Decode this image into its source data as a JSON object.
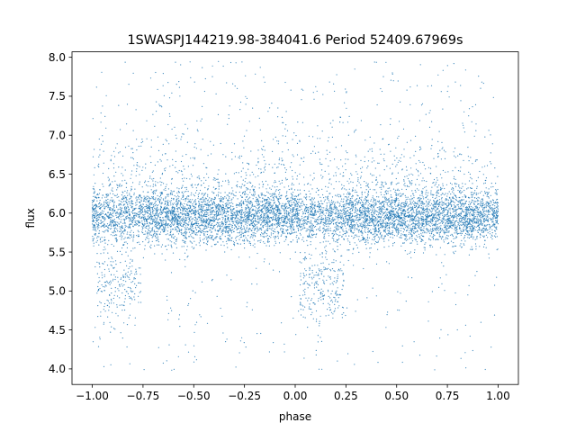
{
  "chart_data": {
    "type": "scatter",
    "title": "1SWASPJ144219.98-384041.6 Period 52409.67969s",
    "xlabel": "phase",
    "ylabel": "flux",
    "xlim": [
      -1.1,
      1.1
    ],
    "ylim": [
      3.8,
      8.07
    ],
    "xticks": [
      -1.0,
      -0.75,
      -0.5,
      -0.25,
      0.0,
      0.25,
      0.5,
      0.75,
      1.0
    ],
    "xtick_labels": [
      "−1.00",
      "−0.75",
      "−0.50",
      "−0.25",
      "0.00",
      "0.25",
      "0.50",
      "0.75",
      "1.00"
    ],
    "yticks": [
      4.0,
      4.5,
      5.0,
      5.5,
      6.0,
      6.5,
      7.0,
      7.5,
      8.0
    ],
    "ytick_labels": [
      "4.0",
      "4.5",
      "5.0",
      "5.5",
      "6.0",
      "6.5",
      "7.0",
      "7.5",
      "8.0"
    ],
    "grid": false,
    "point_color": "#1f77b4",
    "phase_range": [
      -1.0,
      1.0
    ],
    "baseline_flux": 5.95,
    "eclipse_centers": [
      -0.87,
      0.13
    ],
    "eclipse_depth_flux": 5.05,
    "flux_range": [
      3.98,
      7.95
    ]
  }
}
